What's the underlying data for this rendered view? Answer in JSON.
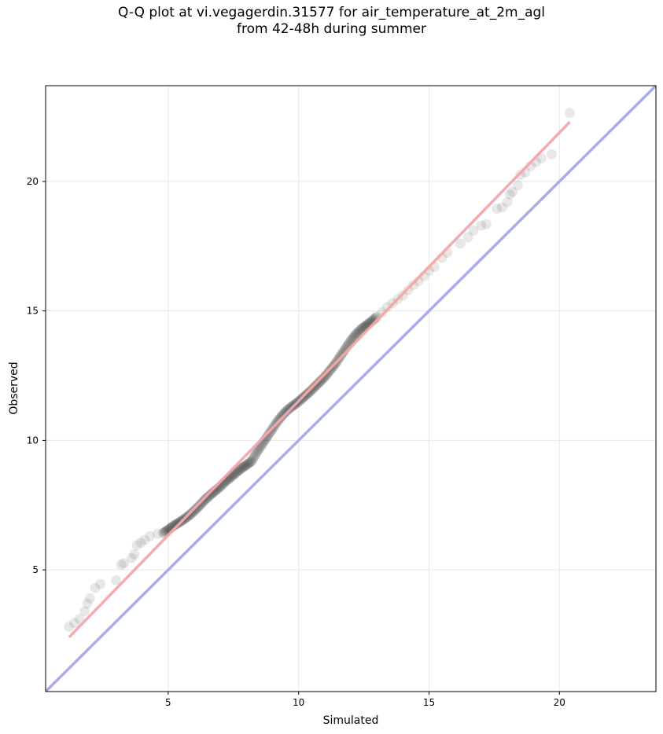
{
  "chart_data": {
    "type": "scatter",
    "title_lines": [
      "Q-Q plot at vi.vegagerdin.31577 for air_temperature_at_2m_agl",
      "from 42-48h during summer"
    ],
    "xlabel": "Simulated",
    "ylabel": "Observed",
    "xlim": [
      0.3,
      23.7
    ],
    "ylim": [
      0.3,
      23.7
    ],
    "xticks": [
      5,
      10,
      15,
      20
    ],
    "yticks": [
      5,
      10,
      15,
      20
    ],
    "grid": true,
    "reference_line": {
      "name": "1:1",
      "color": "#aaaaee",
      "points": [
        [
          0.3,
          0.3
        ],
        [
          23.7,
          23.7
        ]
      ]
    },
    "fit_line": {
      "color": "#f4a6a6",
      "points": [
        [
          1.2,
          2.4
        ],
        [
          20.4,
          22.3
        ]
      ]
    },
    "point_color": "#000000",
    "quantiles": [
      [
        1.2,
        2.8
      ],
      [
        1.4,
        2.95
      ],
      [
        1.6,
        3.1
      ],
      [
        1.8,
        3.4
      ],
      [
        1.9,
        3.7
      ],
      [
        2.0,
        3.9
      ],
      [
        2.2,
        4.3
      ],
      [
        2.4,
        4.45
      ],
      [
        3.0,
        4.6
      ],
      [
        3.2,
        5.2
      ],
      [
        3.3,
        5.25
      ],
      [
        3.6,
        5.45
      ],
      [
        3.7,
        5.6
      ],
      [
        3.8,
        5.95
      ],
      [
        3.95,
        6.05
      ],
      [
        4.1,
        6.15
      ],
      [
        4.3,
        6.3
      ],
      [
        4.6,
        6.4
      ],
      [
        4.8,
        6.42
      ],
      [
        5.0,
        6.55
      ],
      [
        5.2,
        6.7
      ],
      [
        5.4,
        6.82
      ],
      [
        5.6,
        6.95
      ],
      [
        5.8,
        7.1
      ],
      [
        6.0,
        7.28
      ],
      [
        6.2,
        7.48
      ],
      [
        6.4,
        7.7
      ],
      [
        6.6,
        7.88
      ],
      [
        6.8,
        8.05
      ],
      [
        7.0,
        8.22
      ],
      [
        7.2,
        8.42
      ],
      [
        7.4,
        8.58
      ],
      [
        7.6,
        8.75
      ],
      [
        7.8,
        8.92
      ],
      [
        8.0,
        9.05
      ],
      [
        8.2,
        9.2
      ],
      [
        8.4,
        9.55
      ],
      [
        8.6,
        9.85
      ],
      [
        8.8,
        10.15
      ],
      [
        9.0,
        10.45
      ],
      [
        9.2,
        10.75
      ],
      [
        9.4,
        11.0
      ],
      [
        9.6,
        11.2
      ],
      [
        9.8,
        11.35
      ],
      [
        10.0,
        11.5
      ],
      [
        10.2,
        11.68
      ],
      [
        10.4,
        11.85
      ],
      [
        10.6,
        12.05
      ],
      [
        10.8,
        12.25
      ],
      [
        11.0,
        12.45
      ],
      [
        11.2,
        12.7
      ],
      [
        11.4,
        12.95
      ],
      [
        11.6,
        13.25
      ],
      [
        11.8,
        13.55
      ],
      [
        12.0,
        13.85
      ],
      [
        12.2,
        14.1
      ],
      [
        12.4,
        14.3
      ],
      [
        12.6,
        14.45
      ],
      [
        12.8,
        14.6
      ],
      [
        13.0,
        14.78
      ],
      [
        13.2,
        14.95
      ],
      [
        13.4,
        15.15
      ],
      [
        13.6,
        15.3
      ],
      [
        13.8,
        15.45
      ],
      [
        14.0,
        15.6
      ],
      [
        14.2,
        15.8
      ],
      [
        14.4,
        16.0
      ],
      [
        14.6,
        16.15
      ],
      [
        14.8,
        16.35
      ],
      [
        15.0,
        16.55
      ],
      [
        15.2,
        16.7
      ],
      [
        15.5,
        17.05
      ],
      [
        15.7,
        17.25
      ],
      [
        16.2,
        17.6
      ],
      [
        16.5,
        17.85
      ],
      [
        16.7,
        18.1
      ],
      [
        17.0,
        18.3
      ],
      [
        17.2,
        18.35
      ],
      [
        17.6,
        18.95
      ],
      [
        17.8,
        19.0
      ],
      [
        18.0,
        19.2
      ],
      [
        18.1,
        19.5
      ],
      [
        18.2,
        19.6
      ],
      [
        18.4,
        19.85
      ],
      [
        18.5,
        20.25
      ],
      [
        18.7,
        20.35
      ],
      [
        18.9,
        20.6
      ],
      [
        19.1,
        20.75
      ],
      [
        19.3,
        20.9
      ],
      [
        19.7,
        21.05
      ],
      [
        20.4,
        22.65
      ]
    ]
  }
}
